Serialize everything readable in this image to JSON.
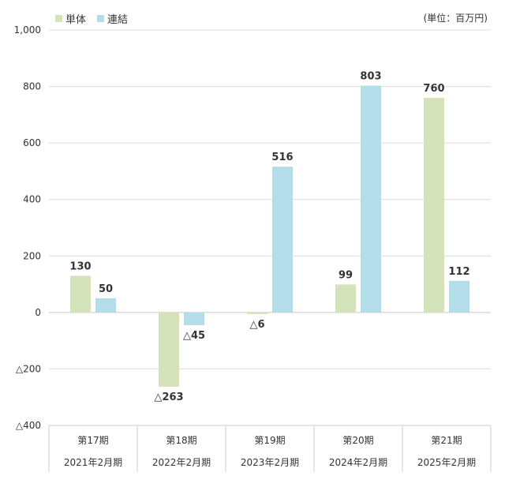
{
  "chart_data": {
    "type": "bar",
    "unit_label": "(単位：百万円)",
    "categories": [
      {
        "period": "第17期",
        "date": "2021年2月期"
      },
      {
        "period": "第18期",
        "date": "2022年2月期"
      },
      {
        "period": "第19期",
        "date": "2023年2月期"
      },
      {
        "period": "第20期",
        "date": "2024年2月期"
      },
      {
        "period": "第21期",
        "date": "2025年2月期"
      }
    ],
    "series": [
      {
        "name": "単体",
        "color": "#d5e3bb",
        "values": [
          130,
          -263,
          -6,
          99,
          760
        ],
        "labels": [
          "130",
          "△263",
          "△6",
          "99",
          "760"
        ]
      },
      {
        "name": "連結",
        "color": "#b3dde8",
        "values": [
          50,
          -45,
          516,
          803,
          112
        ],
        "labels": [
          "50",
          "△45",
          "516",
          "803",
          "112"
        ]
      }
    ],
    "ylim": [
      -400,
      1000
    ],
    "yticks": [
      1000,
      800,
      600,
      400,
      200,
      0,
      -200,
      -400
    ],
    "ytick_labels": [
      "1,000",
      "800",
      "600",
      "400",
      "200",
      "0",
      "△200",
      "△400"
    ],
    "grid": true,
    "legend_position": "top-left"
  }
}
